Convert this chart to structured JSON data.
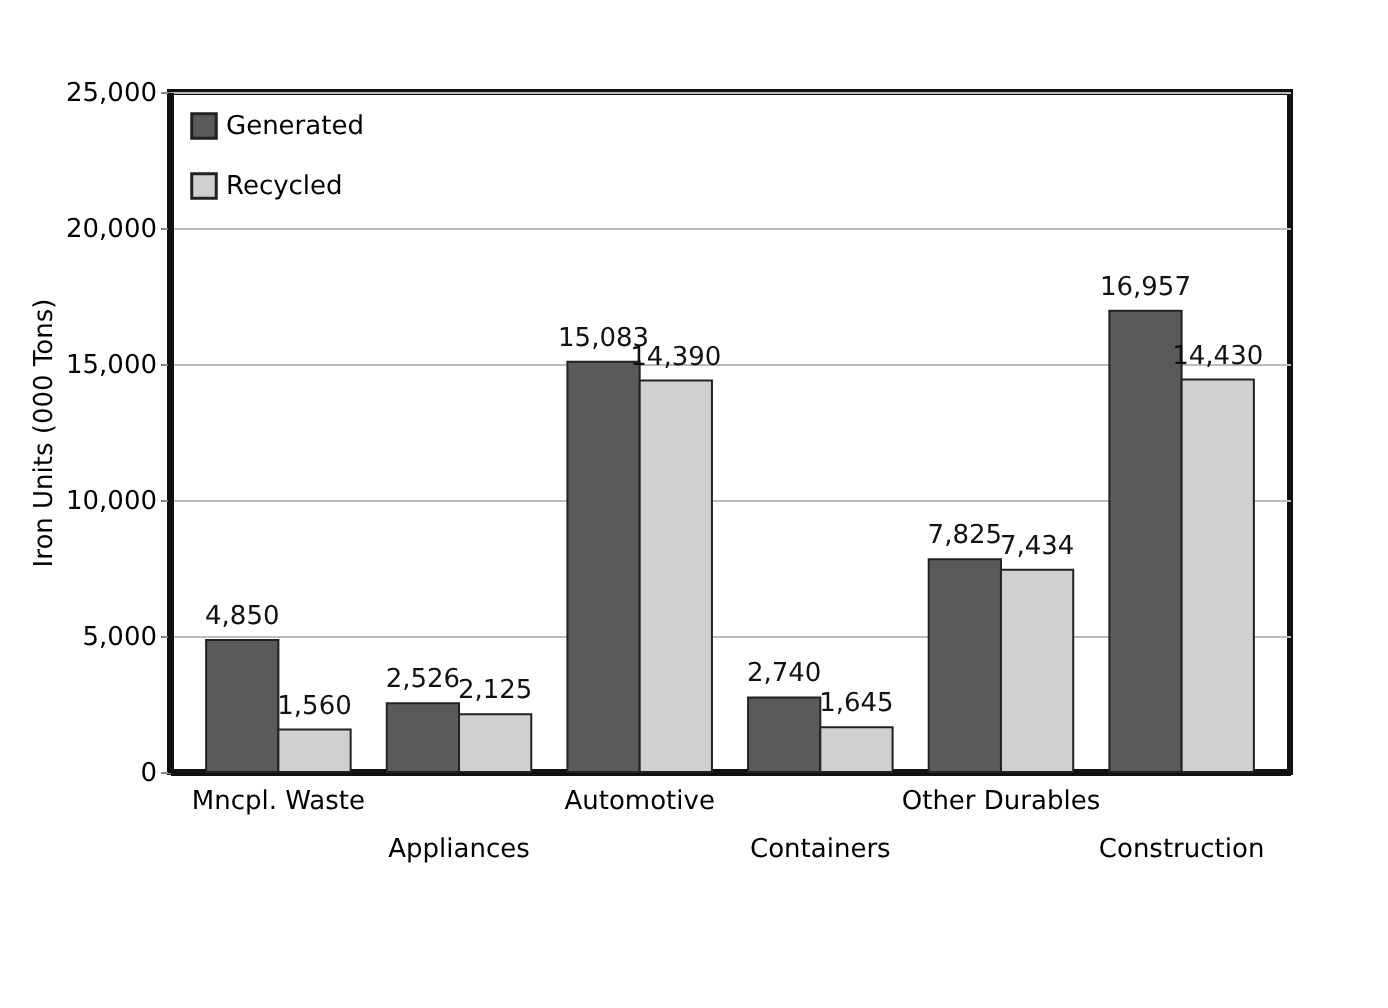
{
  "chart_data": {
    "type": "bar",
    "ylabel": "Iron Units (000 Tons)",
    "categories": [
      "Mncpl. Waste",
      "Appliances",
      "Automotive",
      "Containers",
      "Other Durables",
      "Construction"
    ],
    "series": [
      {
        "name": "Generated",
        "color": "#5a5a5a",
        "values": [
          4850,
          2526,
          15083,
          2740,
          7825,
          16957
        ],
        "value_labels": [
          "4,850",
          "2,526",
          "15,083",
          "2,740",
          "7,825",
          "16,957"
        ]
      },
      {
        "name": "Recycled",
        "color": "#d0d0d0",
        "values": [
          1560,
          2125,
          14390,
          1645,
          7434,
          14430
        ],
        "value_labels": [
          "1,560",
          "2,125",
          "14,390",
          "1,645",
          "7,434",
          "14,430"
        ]
      }
    ],
    "ylim": [
      0,
      25000
    ],
    "yticks": [
      0,
      {
        "value": 5000,
        "label": "5,000"
      },
      {
        "value": 10000,
        "label": "10,000"
      },
      {
        "value": 15000,
        "label": "15,000"
      },
      {
        "value": 20000,
        "label": "20,000"
      },
      {
        "value": 25000,
        "label": "25,000"
      }
    ],
    "grid": "y",
    "legend": "top left"
  }
}
